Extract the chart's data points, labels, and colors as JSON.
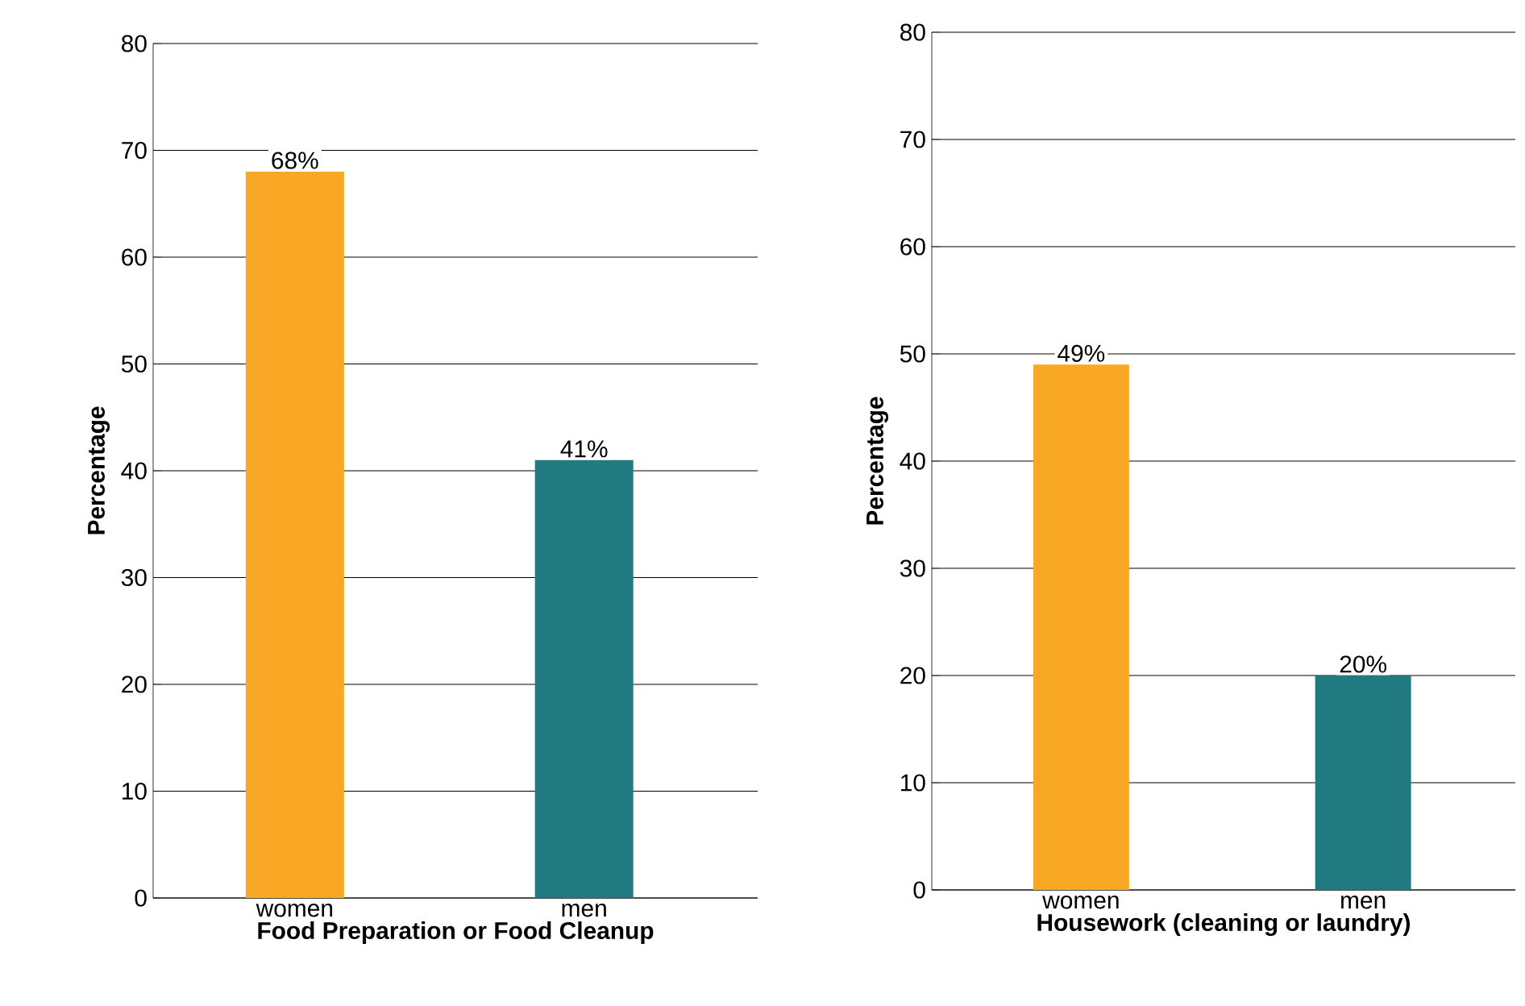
{
  "chart_data": [
    {
      "type": "bar",
      "categories": [
        "women",
        "men"
      ],
      "values": [
        68,
        41
      ],
      "colors": [
        "#f8a824",
        "#217a80"
      ],
      "value_labels": [
        "68%",
        "41%"
      ],
      "xlabel": "Food Preparation or Food Cleanup",
      "ylabel": "Percentage",
      "ylim": [
        0,
        80
      ],
      "yticks": [
        0,
        10,
        20,
        30,
        40,
        50,
        60,
        70,
        80
      ],
      "grid": "y"
    },
    {
      "type": "bar",
      "categories": [
        "women",
        "men"
      ],
      "values": [
        49,
        20
      ],
      "colors": [
        "#f8a824",
        "#217a80"
      ],
      "value_labels": [
        "49%",
        "20%"
      ],
      "xlabel": "Housework (cleaning or laundry)",
      "ylabel": "Percentage",
      "ylim": [
        0,
        80
      ],
      "yticks": [
        0,
        10,
        20,
        30,
        40,
        50,
        60,
        70,
        80
      ],
      "grid": "y"
    }
  ]
}
